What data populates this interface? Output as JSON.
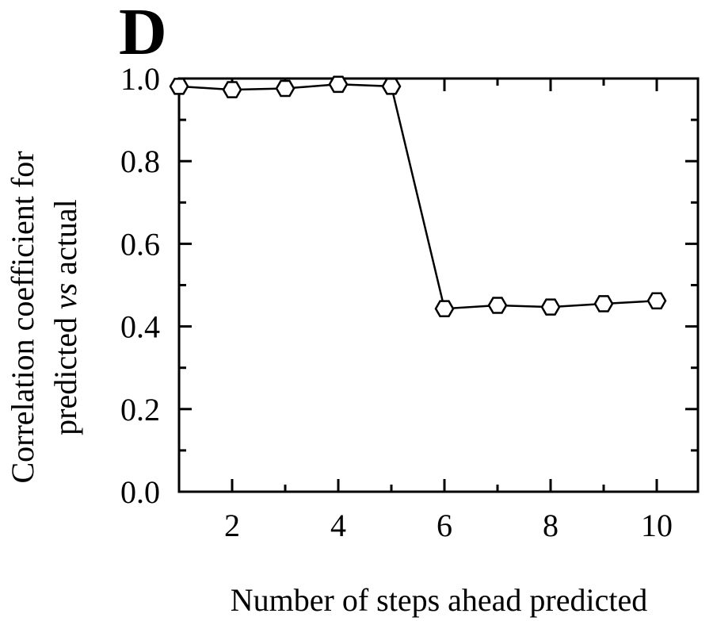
{
  "panel_label": "D",
  "chart_data": {
    "type": "line",
    "xlabel": "Number of steps ahead predicted",
    "ylabel_line1": "Correlation coefficient for",
    "ylabel_line2_pre": "predicted ",
    "ylabel_line2_italic": "vs",
    "ylabel_line2_post": " actual",
    "xlim": [
      1,
      10.8
    ],
    "ylim": [
      0,
      1
    ],
    "x_major_ticks": [
      2,
      4,
      6,
      8,
      10
    ],
    "x_tick_labels": [
      "2",
      "4",
      "6",
      "8",
      "10"
    ],
    "y_major_ticks": [
      0,
      0.2,
      0.4,
      0.6,
      0.8,
      1.0
    ],
    "y_tick_labels": [
      "0.0",
      "0.2",
      "0.4",
      "0.6",
      "0.8",
      "1.0"
    ],
    "series": [
      {
        "marker": "hexagon",
        "x": [
          1,
          2,
          3,
          4,
          5,
          6,
          7,
          8,
          9,
          10
        ],
        "y": [
          0.981,
          0.973,
          0.976,
          0.986,
          0.981,
          0.443,
          0.451,
          0.447,
          0.455,
          0.462
        ]
      }
    ]
  }
}
